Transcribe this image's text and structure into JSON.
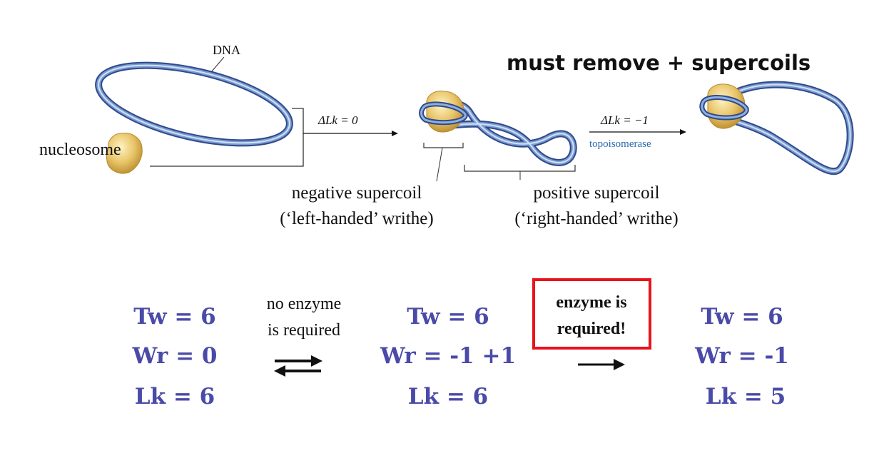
{
  "labels": {
    "dna": "DNA",
    "nucleosome": "nucleosome",
    "headline": "must remove + supercoils",
    "delta_lk_0": "ΔLk = 0",
    "delta_lk_minus1": "ΔLk = −1",
    "topoisomerase": "topoisomerase",
    "negative_supercoil": "negative supercoil",
    "left_handed": "(‘left-handed’ writhe)",
    "positive_supercoil": "positive supercoil",
    "right_handed": "(‘right-handed’ writhe)"
  },
  "equations": {
    "state1": {
      "tw": "Tw = 6",
      "wr": "Wr = 0",
      "lk": "Lk = 6"
    },
    "state2": {
      "tw": "Tw = 6",
      "wr": "Wr = -1 +1",
      "lk": "Lk = 6"
    },
    "state3": {
      "tw": "Tw = 6",
      "wr": "Wr = -1",
      "lk": "Lk = 5"
    }
  },
  "notes": {
    "no_enzyme_line1": "no enzyme",
    "no_enzyme_line2": "is required",
    "enzyme_line1": "enzyme is",
    "enzyme_line2": "required!"
  },
  "colors": {
    "dna_dark": "#2f4a8c",
    "dna_mid": "#6f93c9",
    "dna_light": "#c8d9f1",
    "nucleosome": "#e8c468",
    "equation_text": "#4a4aa8",
    "topoisomerase_text": "#2b6cb0",
    "highlight_box": "#e8141b"
  },
  "icons": [
    "reversible-arrow-icon",
    "forward-arrow-icon"
  ]
}
